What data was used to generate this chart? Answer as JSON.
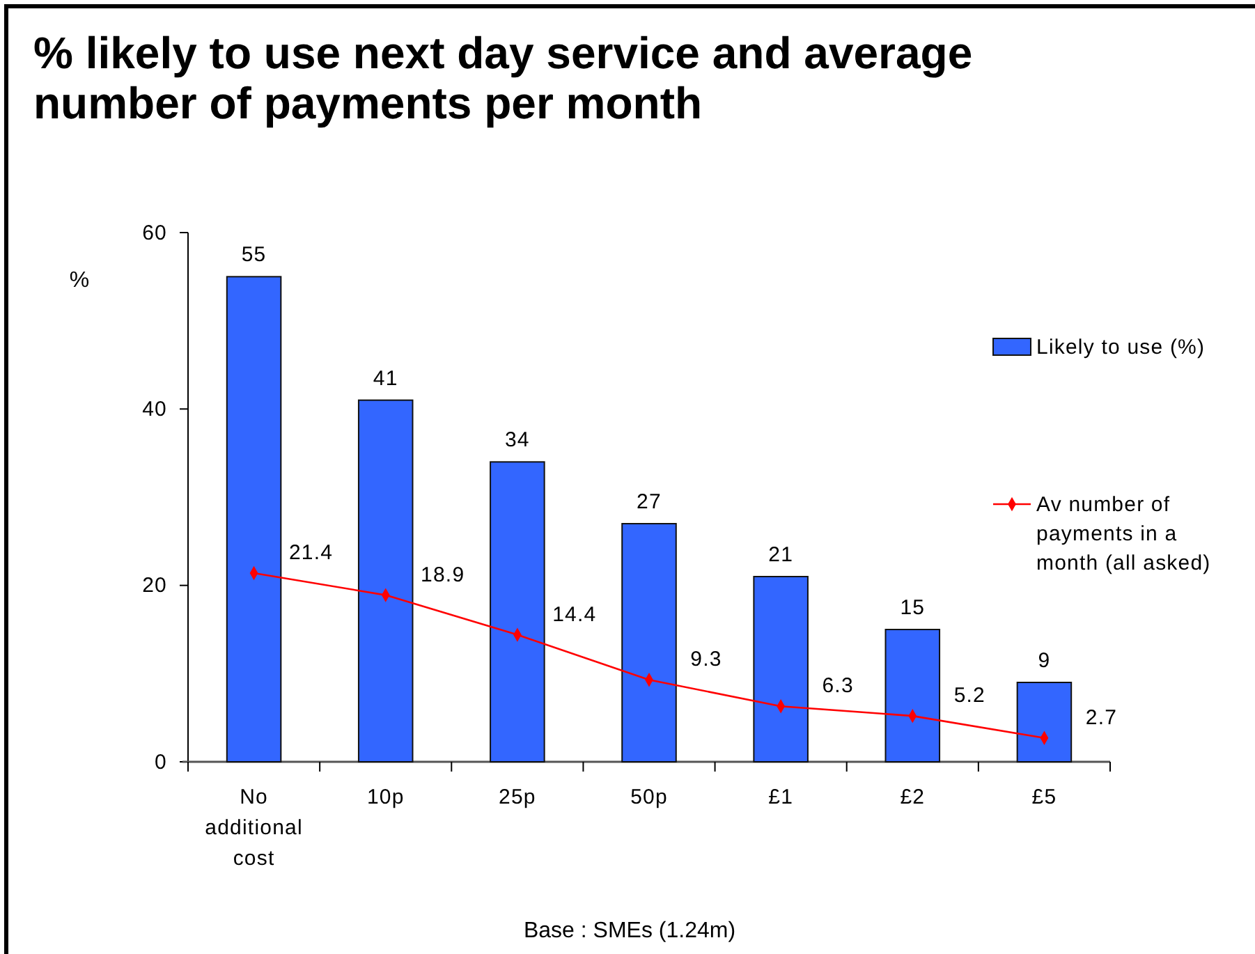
{
  "chart_data": {
    "type": "bar",
    "title": "% likely to use next day service and average number of payments per month",
    "ylabel": "%",
    "categories": [
      "No additional cost",
      "10p",
      "25p",
      "50p",
      "£1",
      "£2",
      "£5"
    ],
    "series": [
      {
        "name": "Likely to use (%)",
        "color": "#3366ff",
        "values": [
          55,
          41,
          34,
          27,
          21,
          15,
          9
        ]
      },
      {
        "name": "Av number of payments in a month (all asked)",
        "type": "line",
        "color": "#ff0000",
        "values": [
          21.4,
          18.9,
          14.4,
          9.3,
          6.3,
          5.2,
          2.7
        ]
      }
    ],
    "ylim": [
      0,
      60
    ],
    "yticks": [
      0,
      20,
      40,
      60
    ],
    "data_labels": true,
    "marker": "diamond",
    "legend": "right",
    "annotations": [
      "Base : SMEs (1.24m)"
    ]
  }
}
